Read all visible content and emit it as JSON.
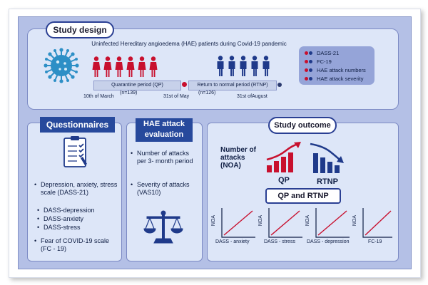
{
  "study_design": {
    "title": "Study design",
    "subtitle": "Uninfected Hereditary angioedema (HAE) patients during Covid-19 pandemic",
    "qp_label": "Quarantine period (QP)",
    "qp_n": "(n=139)",
    "rtnp_label": "Return to normal period (RTNP)",
    "rtnp_n": "(n=126)",
    "date1": "10th of March",
    "date2": "31st of May",
    "date3": "31st ofAugust",
    "legend": [
      "DASS-21",
      "FC-19",
      "HAE attack numbers",
      "HAE attack severity"
    ]
  },
  "questionnaires": {
    "title": "Questionnaires",
    "item1": "Depression, anxiety, stress scale (DASS-21)",
    "sub1": "DASS-depression",
    "sub2": "DASS-anxiety",
    "sub3": "DASS-stress",
    "item2": "Fear of COVID-19 scale (FC - 19)"
  },
  "hae_eval": {
    "title_line1": "HAE attack",
    "title_line2": "evaluation",
    "item1": "Number of attacks per 3- month period",
    "item2": "Severity of attacks (VAS10)"
  },
  "outcome": {
    "title": "Study outcome",
    "noa_label": "Number of attacks (NOA)",
    "qp": "QP",
    "rtnp": "RTNP",
    "compare": "QP and  RTNP",
    "ylabel": "NOA",
    "plots": [
      "DASS - anxiety",
      "DASS - stress",
      "DASS - depression",
      "FC-19"
    ]
  },
  "colors": {
    "red": "#c8102e",
    "navy": "#1f3a8a",
    "accent": "#27499c"
  }
}
